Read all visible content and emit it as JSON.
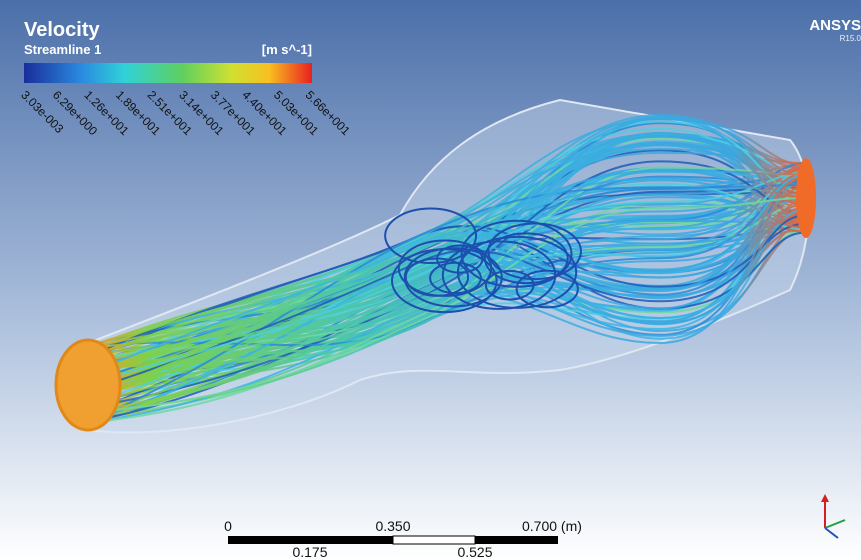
{
  "header": {
    "title": "Velocity",
    "subtitle": "Streamline 1",
    "units": "[m s^-1]",
    "brand": "ANSYS",
    "version": "R15.0"
  },
  "legend": {
    "labels": [
      "3.03e-003",
      "6.29e+000",
      "1.26e+001",
      "1.89e+001",
      "2.51e+001",
      "3.14e+001",
      "3.77e+001",
      "4.40e+001",
      "5.03e+001",
      "5.66e+001"
    ]
  },
  "scale_bar": {
    "top_labels": [
      "0",
      "0.350",
      "0.700 (m)"
    ],
    "bottom_labels": [
      "0.175",
      "0.525"
    ]
  }
}
